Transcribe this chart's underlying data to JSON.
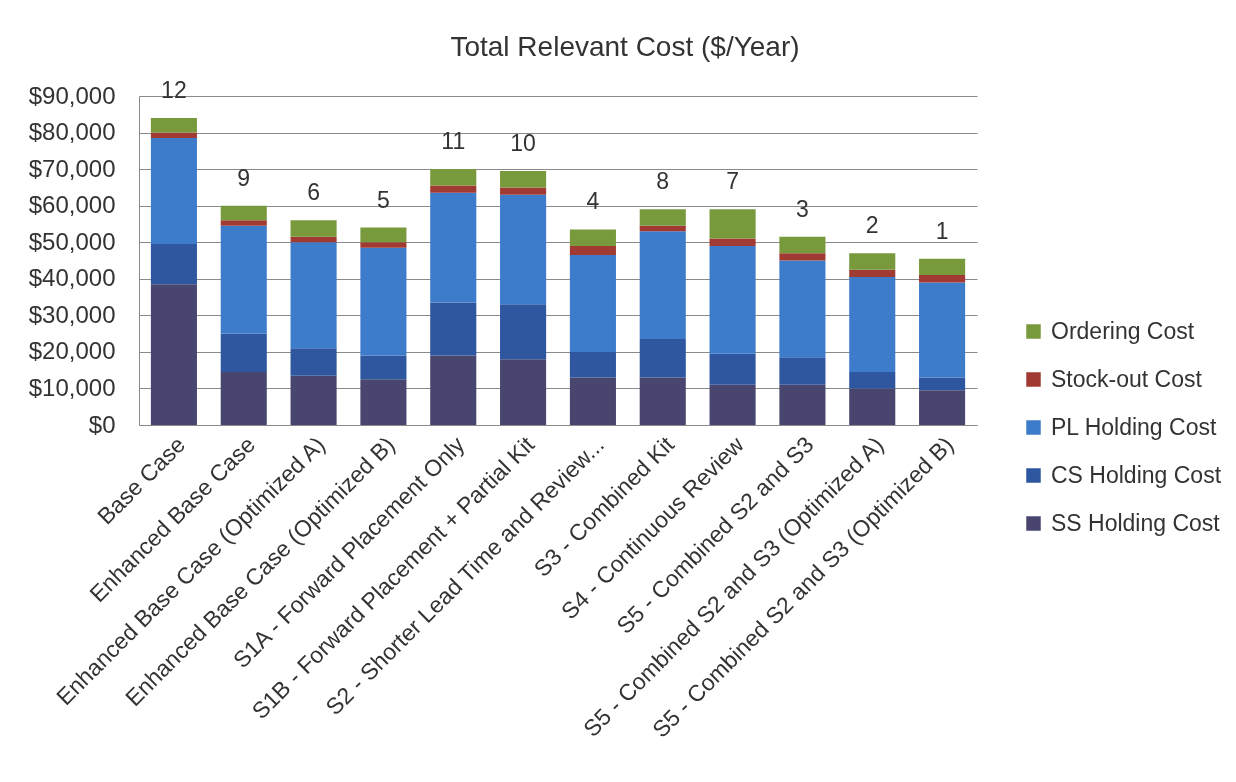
{
  "chart_data": {
    "type": "bar",
    "title": "Total Relevant Cost ($/Year)",
    "categories": [
      "Base Case",
      "Enhanced Base Case",
      "Enhanced Base Case (Optimized A)",
      "Enhanced Base Case (Optimized B)",
      "S1A - Forward Placement Only",
      "S1B - Forward Placement + Partial Kit",
      "S2 - Shorter Lead Time and Review...",
      "S3 - Combined Kit",
      "S4 - Continuous Review",
      "S5 - Combined S2 and S3",
      "S5 - Combined S2 and S3 (Optimized A)",
      "S5 - Combined S2 and S3 (Optimized B)"
    ],
    "series": [
      {
        "name": "SS Holding Cost",
        "color": "#48466f",
        "values": [
          38500,
          14500,
          13500,
          12500,
          19000,
          18000,
          13000,
          13000,
          11000,
          11000,
          10000,
          9500
        ]
      },
      {
        "name": "CS Holding Cost",
        "color": "#2e57a0",
        "values": [
          11000,
          10500,
          7500,
          6500,
          14500,
          15000,
          7000,
          10500,
          8500,
          7500,
          4500,
          3500
        ]
      },
      {
        "name": "PL Holding Cost",
        "color": "#3d7ccb",
        "values": [
          29000,
          29500,
          29000,
          29500,
          30000,
          30000,
          26500,
          29500,
          29500,
          26500,
          26000,
          26000
        ]
      },
      {
        "name": "Stock-out Cost",
        "color": "#a03a33",
        "values": [
          1500,
          1500,
          1500,
          1500,
          2000,
          2000,
          2500,
          1500,
          2000,
          2000,
          2000,
          2000
        ]
      },
      {
        "name": "Ordering Cost",
        "color": "#789a3c",
        "values": [
          4000,
          4000,
          4500,
          4000,
          4500,
          4500,
          4500,
          4500,
          8000,
          4500,
          4500,
          4500
        ]
      }
    ],
    "stacked": true,
    "ylim": [
      0,
      90000
    ],
    "yticks": [
      {
        "value": 0,
        "label": "$0"
      },
      {
        "value": 10000,
        "label": "$10,000"
      },
      {
        "value": 20000,
        "label": "$20,000"
      },
      {
        "value": 30000,
        "label": "$30,000"
      },
      {
        "value": 40000,
        "label": "$40,000"
      },
      {
        "value": 50000,
        "label": "$50,000"
      },
      {
        "value": 60000,
        "label": "$60,000"
      },
      {
        "value": 70000,
        "label": "$70,000"
      },
      {
        "value": 80000,
        "label": "$80,000"
      },
      {
        "value": 90000,
        "label": "$90,000"
      }
    ],
    "grid": "y",
    "legend": "right",
    "annotations": [
      {
        "text": "12",
        "x": "Base Case",
        "y": 84000
      },
      {
        "text": "9",
        "x": "Enhanced Base Case",
        "y": 60000
      },
      {
        "text": "6",
        "x": "Enhanced Base Case (Optimized A)",
        "y": 56000
      },
      {
        "text": "5",
        "x": "Enhanced Base Case (Optimized B)",
        "y": 54000
      },
      {
        "text": "11",
        "x": "S1A - Forward Placement Only",
        "y": 70000
      },
      {
        "text": "10",
        "x": "S1B - Forward Placement + Partial Kit",
        "y": 69500
      },
      {
        "text": "4",
        "x": "S2 - Shorter Lead Time and Review...",
        "y": 53500
      },
      {
        "text": "8",
        "x": "S3 - Combined Kit",
        "y": 59000
      },
      {
        "text": "7",
        "x": "S4 - Continuous Review",
        "y": 59000
      },
      {
        "text": "3",
        "x": "S5 - Combined S2 and S3",
        "y": 51500
      },
      {
        "text": "2",
        "x": "S5 - Combined S2 and S3 (Optimized A)",
        "y": 47000
      },
      {
        "text": "1",
        "x": "S5 - Combined S2 and S3 (Optimized B)",
        "y": 45500
      }
    ]
  }
}
